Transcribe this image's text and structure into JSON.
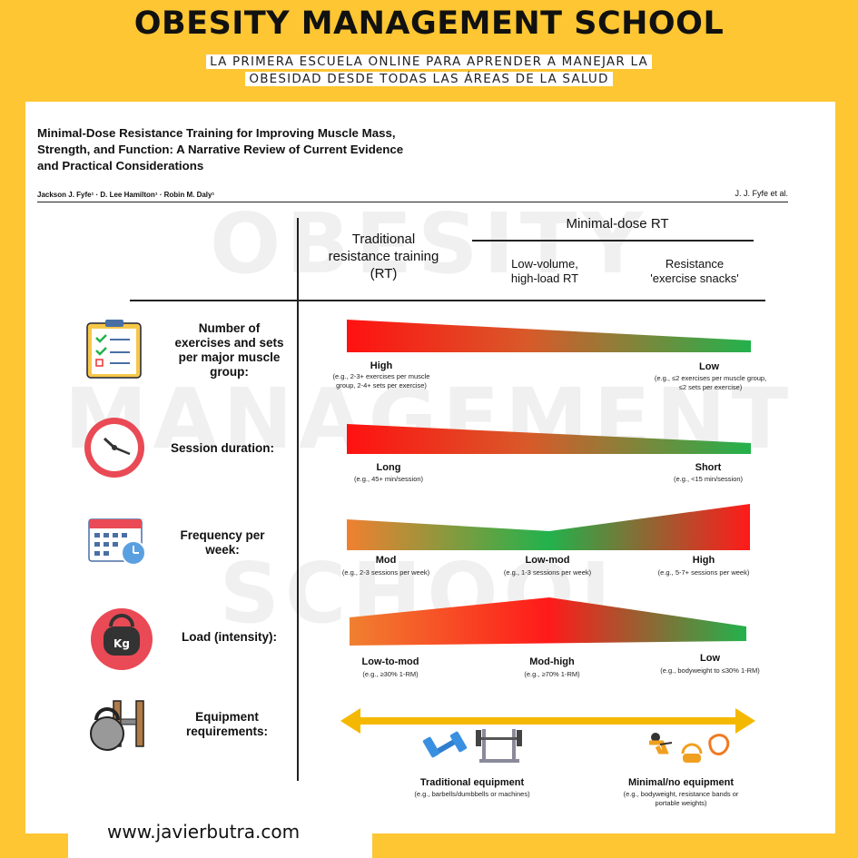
{
  "banner": {
    "title": "OBESITY MANAGEMENT SCHOOL",
    "subtitle_line1": "LA PRIMERA ESCUELA ONLINE PARA APRENDER A MANEJAR LA",
    "subtitle_line2": "OBESIDAD DESDE TODAS LAS ÁREAS DE LA SALUD"
  },
  "paper": {
    "title_line1": "Minimal-Dose Resistance Training for Improving Muscle Mass,",
    "title_line2": "Strength, and Function: A Narrative Review of Current Evidence",
    "title_line3": "and Practical Considerations",
    "authors": "Jackson J. Fyfe¹ · D. Lee Hamilton¹ · Robin M. Daly¹",
    "running_head": "J. J. Fyfe et al."
  },
  "watermark": {
    "line1": "OBESITY",
    "line2": "MANAGEMENT",
    "line3": "SCHOOL"
  },
  "columns": {
    "traditional_line1": "Traditional",
    "traditional_line2": "resistance training",
    "traditional_line3": "(RT)",
    "minimal_header": "Minimal-dose RT",
    "lowvol_line1": "Low-volume,",
    "lowvol_line2": "high-load RT",
    "snacks_line1": "Resistance",
    "snacks_line2": "'exercise snacks'"
  },
  "rows": [
    {
      "label_lines": [
        "Number of",
        "exercises and sets",
        "per major muscle",
        "group:"
      ],
      "icon": "checklist-icon",
      "points": [
        {
          "label": "High",
          "example_lines": [
            "(e.g., 2-3+ exercises per muscle",
            "group, 2-4+ sets per exercise)"
          ]
        },
        {
          "label": "Low",
          "example_lines": [
            "(e.g., ≤2 exercises per muscle group,",
            "≤2 sets per exercise)"
          ]
        }
      ]
    },
    {
      "label_lines": [
        "Session duration:"
      ],
      "icon": "clock-icon",
      "points": [
        {
          "label": "Long",
          "example_lines": [
            "(e.g., 45+ min/session)"
          ]
        },
        {
          "label": "Short",
          "example_lines": [
            "(e.g., <15 min/session)"
          ]
        }
      ]
    },
    {
      "label_lines": [
        "Frequency per",
        "week:"
      ],
      "icon": "calendar-icon",
      "points": [
        {
          "label": "Mod",
          "example_lines": [
            "(e.g., 2-3 sessions per week)"
          ]
        },
        {
          "label": "Low-mod",
          "example_lines": [
            "(e.g., 1-3 sessions per week)"
          ]
        },
        {
          "label": "High",
          "example_lines": [
            "(e.g., 5-7+ sessions per week)"
          ]
        }
      ]
    },
    {
      "label_lines": [
        "Load (intensity):"
      ],
      "icon": "kettlebell-icon",
      "icon_text": "Kg",
      "points": [
        {
          "label": "Low-to-mod",
          "example_lines": [
            "(e.g., ≥30% 1-RM)"
          ]
        },
        {
          "label": "Mod-high",
          "example_lines": [
            "(e.g., ≥70% 1-RM)"
          ]
        },
        {
          "label": "Low",
          "example_lines": [
            "(e.g., bodyweight to ≤30% 1-RM)"
          ]
        }
      ]
    },
    {
      "label_lines": [
        "Equipment",
        "requirements:"
      ],
      "icon": "kettlebell-dumbbell-icon",
      "points": [
        {
          "label": "Traditional equipment",
          "example_lines": [
            "(e.g., barbells/dumbbells or machines)"
          ]
        },
        {
          "label": "Minimal/no equipment",
          "example_lines": [
            "(e.g., bodyweight, resistance bands or",
            "portable weights)"
          ]
        }
      ]
    }
  ],
  "colors": {
    "yellow": "#fdc632",
    "red": "#ff1a1a",
    "orange": "#f08030",
    "green": "#22b24c",
    "arrow": "#f5b800"
  },
  "footer": {
    "url": "www.javierbutra.com"
  }
}
